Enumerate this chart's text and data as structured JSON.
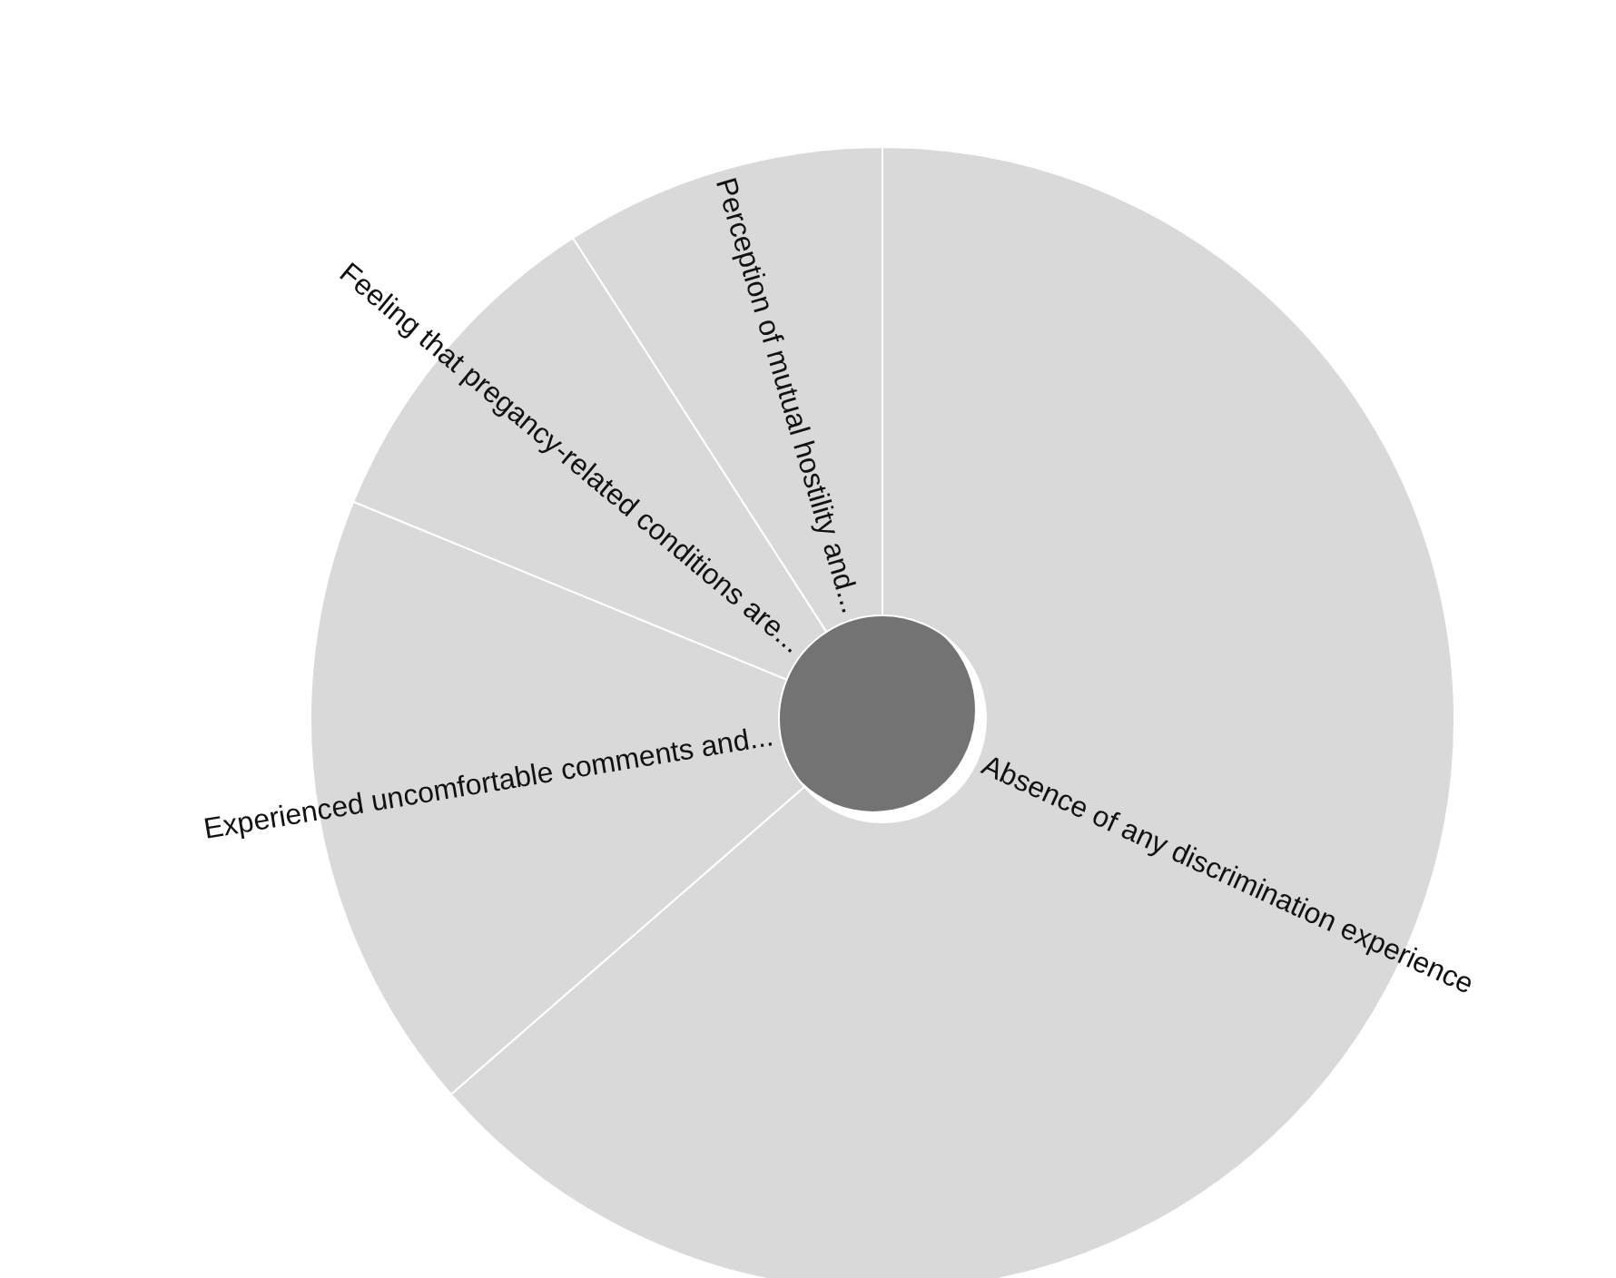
{
  "chart_data": {
    "type": "donut",
    "categories": [
      "Absence of any discrimination experience",
      "Experienced uncomfortable comments and...",
      "Feeling that pregancy-related conditions are...",
      "Perception of mutual hostility and..."
    ],
    "values": [
      63.6,
      17.6,
      9.7,
      9.1
    ],
    "colors": [
      "#d9d9d9",
      "#d9d9d9",
      "#d9d9d9",
      "#d9d9d9"
    ],
    "legend": false
  }
}
